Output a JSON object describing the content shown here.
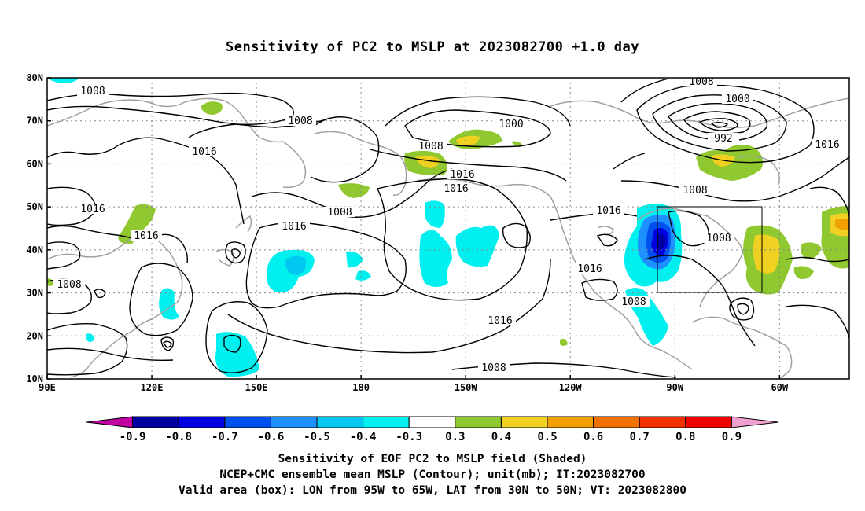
{
  "title": "Sensitivity of PC2 to MSLP at 2023082700 +1.0 day",
  "map": {
    "lat_ticks": [
      "80N",
      "70N",
      "60N",
      "50N",
      "40N",
      "30N",
      "20N",
      "10N"
    ],
    "lon_ticks": [
      "90E",
      "120E",
      "150E",
      "180",
      "150W",
      "120W",
      "90W",
      "60W"
    ],
    "lon_range": [
      "90E",
      "40W"
    ],
    "lat_range": [
      "10N",
      "80N"
    ],
    "coastline_color": "#a0a0a0",
    "contour_color": "#000000",
    "valid_box": {
      "lon": [
        "95W",
        "65W"
      ],
      "lat": [
        "30N",
        "50N"
      ]
    }
  },
  "contour_labels": [
    "1008",
    "1008",
    "1016",
    "1016",
    "1016",
    "1008",
    "1000",
    "1008",
    "1016",
    "1016",
    "1008",
    "1016",
    "1016",
    "1008",
    "1000",
    "992",
    "1016",
    "1008",
    "1016",
    "1008",
    "1008",
    "1016",
    "1008"
  ],
  "colorbar": {
    "labels": [
      "-0.9",
      "-0.8",
      "-0.7",
      "-0.6",
      "-0.5",
      "-0.4",
      "-0.3",
      "0.3",
      "0.4",
      "0.5",
      "0.6",
      "0.7",
      "0.8",
      "0.9"
    ],
    "colors": [
      "#c000a0",
      "#0000a0",
      "#0000e0",
      "#0050f0",
      "#1e90ff",
      "#00c8f0",
      "#00f0f0",
      "#ffffff",
      "#90c830",
      "#f0d020",
      "#f0a000",
      "#f07000",
      "#f03000",
      "#f00000",
      "#f0a0d0"
    ]
  },
  "caption": {
    "line1": "Sensitivity of EOF PC2 to MSLP field (Shaded)",
    "line2": "NCEP+CMC ensemble mean MSLP (Contour); unit(mb); IT:2023082700",
    "line3": "Valid area (box): LON from 95W to 65W, LAT from 30N to 50N; VT: 2023082800"
  }
}
